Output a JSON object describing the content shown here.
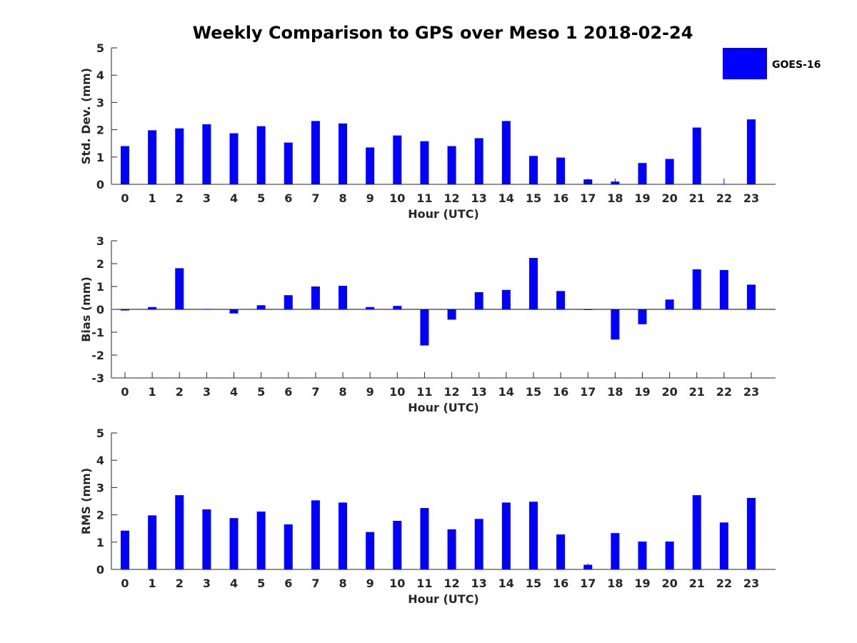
{
  "chart_data": {
    "title": "Weekly Comparison to GPS over Meso 1 2018-02-24",
    "legend": {
      "label": "GOES-16",
      "color": "#0000ff",
      "placement": "top-right"
    },
    "bar_color": "#0000ff",
    "categories": [
      "0",
      "1",
      "2",
      "3",
      "4",
      "5",
      "6",
      "7",
      "8",
      "9",
      "10",
      "11",
      "12",
      "13",
      "14",
      "15",
      "16",
      "17",
      "18",
      "19",
      "20",
      "21",
      "22",
      "23"
    ],
    "panels": [
      {
        "type": "bar",
        "xlabel": "Hour (UTC)",
        "ylabel": "Std. Dev. (mm)",
        "ylim": [
          0,
          5
        ],
        "yticks": [
          "0",
          "1",
          "2",
          "3",
          "4",
          "5"
        ],
        "values": [
          1.4,
          1.98,
          2.05,
          2.2,
          1.87,
          2.13,
          1.53,
          2.32,
          2.23,
          1.35,
          1.79,
          1.58,
          1.4,
          1.69,
          2.32,
          1.04,
          0.98,
          0.18,
          0.1,
          0.78,
          0.93,
          2.08,
          0.0,
          2.38
        ]
      },
      {
        "type": "bar",
        "xlabel": "Hour (UTC)",
        "ylabel": "Bias (mm)",
        "ylim": [
          -3,
          3
        ],
        "yticks": [
          "-3",
          "-2",
          "-1",
          "0",
          "1",
          "2",
          "3"
        ],
        "values": [
          -0.05,
          0.1,
          1.8,
          0.02,
          -0.18,
          0.18,
          0.62,
          1.0,
          1.03,
          0.1,
          0.15,
          -1.58,
          -0.45,
          0.75,
          0.85,
          2.25,
          0.8,
          -0.03,
          -1.32,
          -0.65,
          0.43,
          1.75,
          1.72,
          1.08
        ]
      },
      {
        "type": "bar",
        "xlabel": "Hour (UTC)",
        "ylabel": "RMS (mm)",
        "ylim": [
          0,
          5
        ],
        "yticks": [
          "0",
          "1",
          "2",
          "3",
          "4",
          "5"
        ],
        "values": [
          1.42,
          1.98,
          2.72,
          2.2,
          1.88,
          2.12,
          1.65,
          2.53,
          2.45,
          1.37,
          1.78,
          2.25,
          1.47,
          1.85,
          2.45,
          2.48,
          1.28,
          0.17,
          1.33,
          1.02,
          1.02,
          2.72,
          1.72,
          2.62
        ]
      }
    ]
  }
}
